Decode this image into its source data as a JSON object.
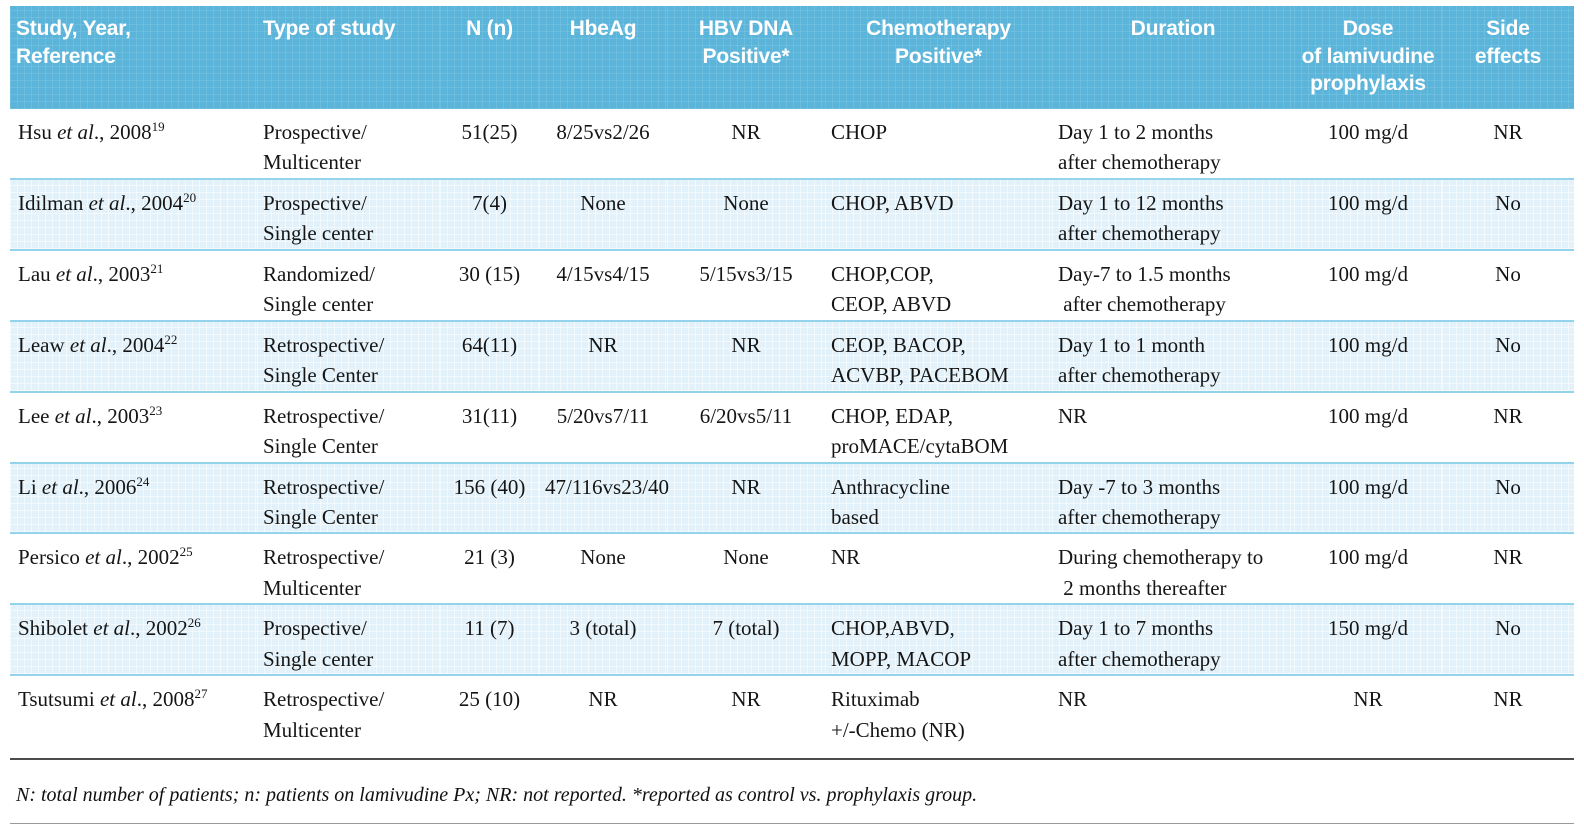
{
  "table": {
    "columns": [
      "Study, Year,\nReference",
      "Type of study",
      "N (n)",
      "HbeAg",
      "HBV DNA\nPositive*",
      "Chemotherapy\nPositive*",
      "Duration",
      "Dose\nof lamivudine\nprophylaxis",
      "Side\neffects"
    ],
    "rows": [
      {
        "study": {
          "name": "Hsu ",
          "etal": "et al",
          "rest": "., 2008",
          "ref": "19"
        },
        "type": "Prospective/\nMulticenter",
        "n": "51(25)",
        "hbeag": "8/25vs2/26",
        "hbv_dna": "NR",
        "chemotherapy": "CHOP",
        "duration": "Day 1 to 2 months\nafter chemotherapy",
        "dose": "100 mg/d",
        "side_effects": "NR"
      },
      {
        "study": {
          "name": "Idilman ",
          "etal": "et al",
          "rest": "., 2004",
          "ref": "20"
        },
        "type": "Prospective/\nSingle center",
        "n": "7(4)",
        "hbeag": "None",
        "hbv_dna": "None",
        "chemotherapy": "CHOP, ABVD",
        "duration": "Day 1 to 12 months\nafter chemotherapy",
        "dose": "100 mg/d",
        "side_effects": "No"
      },
      {
        "study": {
          "name": "Lau ",
          "etal": "et al",
          "rest": "., 2003",
          "ref": "21"
        },
        "type": "Randomized/\nSingle center",
        "n": "30 (15)",
        "hbeag": "4/15vs4/15",
        "hbv_dna": "5/15vs3/15",
        "chemotherapy": "CHOP,COP,\nCEOP, ABVD",
        "duration": "Day-7 to 1.5 months\n after chemotherapy",
        "dose": "100 mg/d",
        "side_effects": "No"
      },
      {
        "study": {
          "name": "Leaw ",
          "etal": "et al",
          "rest": "., 2004",
          "ref": "22"
        },
        "type": "Retrospective/\nSingle Center",
        "n": "64(11)",
        "hbeag": "NR",
        "hbv_dna": "NR",
        "chemotherapy": "CEOP, BACOP,\nACVBP, PACEBOM",
        "duration": "Day 1 to 1 month\nafter chemotherapy",
        "dose": "100 mg/d",
        "side_effects": "No"
      },
      {
        "study": {
          "name": "Lee ",
          "etal": "et al",
          "rest": "., 2003",
          "ref": "23"
        },
        "type": "Retrospective/\nSingle Center",
        "n": "31(11)",
        "hbeag": "5/20vs7/11",
        "hbv_dna": "6/20vs5/11",
        "chemotherapy": "CHOP, EDAP,\nproMACE/cytaBOM",
        "duration": "NR",
        "dose": "100 mg/d",
        "side_effects": "NR"
      },
      {
        "study": {
          "name": "Li ",
          "etal": "et al",
          "rest": "., 2006",
          "ref": "24"
        },
        "type": "Retrospective/\nSingle Center",
        "n": "156 (40)",
        "hbeag": "47/116vs23/40",
        "hbv_dna": "NR",
        "chemotherapy": "Anthracycline\nbased",
        "duration": "Day -7 to 3 months\nafter chemotherapy",
        "dose": "100 mg/d",
        "side_effects": "No"
      },
      {
        "study": {
          "name": "Persico ",
          "etal": "et al",
          "rest": "., 2002",
          "ref": "25"
        },
        "type": "Retrospective/\nMulticenter",
        "n": "21 (3)",
        "hbeag": "None",
        "hbv_dna": "None",
        "chemotherapy": "NR",
        "duration": "During chemotherapy to\n 2 months thereafter",
        "dose": "100 mg/d",
        "side_effects": "NR"
      },
      {
        "study": {
          "name": "Shibolet ",
          "etal": "et al",
          "rest": "., 2002",
          "ref": "26"
        },
        "type": "Prospective/\nSingle center",
        "n": "11 (7)",
        "hbeag": "3 (total)",
        "hbv_dna": "7 (total)",
        "chemotherapy": "CHOP,ABVD,\nMOPP, MACOP",
        "duration": "Day 1 to 7 months\nafter chemotherapy",
        "dose": "150 mg/d",
        "side_effects": "No"
      },
      {
        "study": {
          "name": "Tsutsumi ",
          "etal": "et al",
          "rest": "., 2008",
          "ref": "27"
        },
        "type": "Retrospective/\nMulticenter",
        "n": "25 (10)",
        "hbeag": "NR",
        "hbv_dna": "NR",
        "chemotherapy": "Rituximab\n+/-Chemo (NR)",
        "duration": "NR",
        "dose": "NR",
        "side_effects": "NR"
      }
    ],
    "footnote": "N: total number of patients; n: patients on lamivudine Px; NR: not reported. *reported as control vs. prophylaxis group."
  },
  "colors": {
    "header_bg": "#5bb4da",
    "header_text": "#ffffff",
    "alt_row_bg": "#e3f2fa",
    "row_separator": "#93d3ec",
    "footnote_rule": "#4b4b4b",
    "body_text": "#151515"
  }
}
